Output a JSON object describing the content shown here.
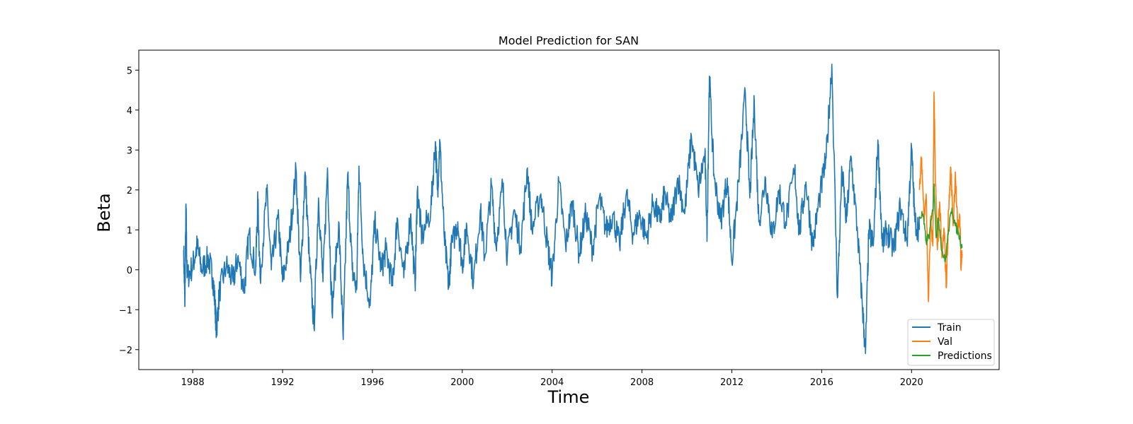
{
  "chart_data": {
    "type": "line",
    "title": "Model Prediction for SAN",
    "xlabel": "Time",
    "ylabel": "Beta",
    "xlim": [
      1985.6,
      2023.9
    ],
    "ylim": [
      -2.5,
      5.5
    ],
    "x_ticks": [
      1988,
      1992,
      1996,
      2000,
      2004,
      2008,
      2012,
      2016,
      2020
    ],
    "y_ticks": [
      -2,
      -1,
      0,
      1,
      2,
      3,
      4,
      5
    ],
    "grid": false,
    "legend_position": "lower-right",
    "series": [
      {
        "name": "Train",
        "color": "#1f77b4",
        "points": [
          [
            1987.6,
            0.5
          ],
          [
            1987.65,
            -0.92
          ],
          [
            1987.7,
            1.65
          ],
          [
            1987.75,
            -0.2
          ],
          [
            1988.0,
            0.1
          ],
          [
            1988.2,
            0.6
          ],
          [
            1988.4,
            0.0
          ],
          [
            1988.7,
            0.3
          ],
          [
            1988.9,
            -0.2
          ],
          [
            1989.0,
            -0.9
          ],
          [
            1989.05,
            -1.55
          ],
          [
            1989.2,
            -0.5
          ],
          [
            1989.5,
            0.1
          ],
          [
            1989.8,
            -0.3
          ],
          [
            1990.0,
            0.3
          ],
          [
            1990.3,
            -0.5
          ],
          [
            1990.5,
            0.9
          ],
          [
            1990.8,
            0.0
          ],
          [
            1990.9,
            1.75
          ],
          [
            1991.0,
            -0.2
          ],
          [
            1991.3,
            1.95
          ],
          [
            1991.5,
            0.0
          ],
          [
            1991.8,
            1.3
          ],
          [
            1992.0,
            -0.3
          ],
          [
            1992.3,
            0.7
          ],
          [
            1992.6,
            2.5
          ],
          [
            1992.8,
            -0.3
          ],
          [
            1993.0,
            2.45
          ],
          [
            1993.2,
            0.2
          ],
          [
            1993.4,
            -1.45
          ],
          [
            1993.6,
            1.8
          ],
          [
            1993.8,
            -0.3
          ],
          [
            1994.0,
            2.55
          ],
          [
            1994.2,
            -1.05
          ],
          [
            1994.5,
            1.2
          ],
          [
            1994.7,
            -1.75
          ],
          [
            1994.9,
            2.4
          ],
          [
            1995.1,
            0.0
          ],
          [
            1995.3,
            -0.5
          ],
          [
            1995.4,
            2.6
          ],
          [
            1995.6,
            0.2
          ],
          [
            1995.9,
            -0.9
          ],
          [
            1996.1,
            1.2
          ],
          [
            1996.4,
            0.0
          ],
          [
            1996.6,
            0.5
          ],
          [
            1996.9,
            -0.4
          ],
          [
            1997.1,
            1.3
          ],
          [
            1997.4,
            -0.2
          ],
          [
            1997.7,
            1.4
          ],
          [
            1997.9,
            -0.4
          ],
          [
            1998.0,
            2.0
          ],
          [
            1998.2,
            0.8
          ],
          [
            1998.6,
            1.5
          ],
          [
            1998.8,
            3.2
          ],
          [
            1998.9,
            2.0
          ],
          [
            1999.0,
            3.2
          ],
          [
            1999.2,
            0.8
          ],
          [
            1999.4,
            -0.45
          ],
          [
            1999.5,
            0.5
          ],
          [
            1999.8,
            1.2
          ],
          [
            2000.0,
            0.1
          ],
          [
            2000.2,
            1.1
          ],
          [
            2000.5,
            -0.3
          ],
          [
            2000.8,
            1.5
          ],
          [
            2001.0,
            0.3
          ],
          [
            2001.3,
            2.1
          ],
          [
            2001.5,
            0.6
          ],
          [
            2001.8,
            2.15
          ],
          [
            2002.0,
            0.3
          ],
          [
            2002.3,
            1.5
          ],
          [
            2002.6,
            0.6
          ],
          [
            2002.9,
            2.55
          ],
          [
            2003.1,
            1.0
          ],
          [
            2003.5,
            1.9
          ],
          [
            2003.8,
            0.6
          ],
          [
            2004.0,
            -0.2
          ],
          [
            2004.3,
            2.2
          ],
          [
            2004.6,
            0.6
          ],
          [
            2004.9,
            1.7
          ],
          [
            2005.2,
            0.4
          ],
          [
            2005.5,
            1.4
          ],
          [
            2005.8,
            0.5
          ],
          [
            2006.1,
            1.8
          ],
          [
            2006.4,
            1.0
          ],
          [
            2006.7,
            1.4
          ],
          [
            2007.0,
            0.6
          ],
          [
            2007.3,
            1.9
          ],
          [
            2007.6,
            0.9
          ],
          [
            2007.9,
            1.4
          ],
          [
            2008.2,
            0.8
          ],
          [
            2008.5,
            1.7
          ],
          [
            2008.8,
            1.2
          ],
          [
            2009.0,
            1.9
          ],
          [
            2009.3,
            1.2
          ],
          [
            2009.6,
            2.3
          ],
          [
            2009.9,
            1.4
          ],
          [
            2010.2,
            3.35
          ],
          [
            2010.5,
            2.0
          ],
          [
            2010.8,
            2.9
          ],
          [
            2010.9,
            0.9
          ],
          [
            2011.0,
            4.85
          ],
          [
            2011.2,
            2.4
          ],
          [
            2011.5,
            1.2
          ],
          [
            2011.8,
            2.3
          ],
          [
            2012.0,
            0.2
          ],
          [
            2012.3,
            2.2
          ],
          [
            2012.6,
            4.45
          ],
          [
            2012.8,
            1.8
          ],
          [
            2013.0,
            4.2
          ],
          [
            2013.2,
            1.2
          ],
          [
            2013.5,
            2.3
          ],
          [
            2013.8,
            0.8
          ],
          [
            2014.1,
            2.0
          ],
          [
            2014.4,
            1.2
          ],
          [
            2014.8,
            2.5
          ],
          [
            2015.0,
            0.9
          ],
          [
            2015.3,
            2.2
          ],
          [
            2015.6,
            0.6
          ],
          [
            2015.9,
            1.8
          ],
          [
            2016.2,
            2.8
          ],
          [
            2016.45,
            5.15
          ],
          [
            2016.7,
            -0.7
          ],
          [
            2016.9,
            2.5
          ],
          [
            2017.1,
            1.2
          ],
          [
            2017.3,
            2.85
          ],
          [
            2017.6,
            0.9
          ],
          [
            2017.8,
            -0.8
          ],
          [
            2017.95,
            -2.1
          ],
          [
            2018.1,
            1.0
          ],
          [
            2018.3,
            0.6
          ],
          [
            2018.5,
            3.25
          ],
          [
            2018.7,
            0.6
          ],
          [
            2018.9,
            1.0
          ],
          [
            2019.2,
            0.5
          ],
          [
            2019.5,
            1.6
          ],
          [
            2019.8,
            0.7
          ],
          [
            2020.0,
            3.05
          ],
          [
            2020.15,
            1.2
          ],
          [
            2020.35,
            1.0
          ]
        ]
      },
      {
        "name": "Val",
        "color": "#ff7f0e",
        "points": [
          [
            2020.35,
            2.0
          ],
          [
            2020.45,
            2.8
          ],
          [
            2020.55,
            1.4
          ],
          [
            2020.65,
            1.9
          ],
          [
            2020.75,
            -0.8
          ],
          [
            2020.85,
            1.3
          ],
          [
            2020.95,
            0.6
          ],
          [
            2021.0,
            4.45
          ],
          [
            2021.05,
            2.6
          ],
          [
            2021.15,
            0.5
          ],
          [
            2021.25,
            1.7
          ],
          [
            2021.35,
            0.3
          ],
          [
            2021.45,
            1.0
          ],
          [
            2021.55,
            -0.45
          ],
          [
            2021.65,
            1.5
          ],
          [
            2021.75,
            2.55
          ],
          [
            2021.85,
            1.1
          ],
          [
            2021.95,
            2.45
          ],
          [
            2022.05,
            1.0
          ],
          [
            2022.15,
            1.3
          ],
          [
            2022.2,
            0.1
          ],
          [
            2022.25,
            0.4
          ]
        ]
      },
      {
        "name": "Predictions",
        "color": "#2ca02c",
        "points": [
          [
            2020.35,
            1.3
          ],
          [
            2020.5,
            1.4
          ],
          [
            2020.65,
            0.7
          ],
          [
            2020.8,
            0.9
          ],
          [
            2020.95,
            1.5
          ],
          [
            2021.0,
            2.15
          ],
          [
            2021.1,
            0.8
          ],
          [
            2021.2,
            1.3
          ],
          [
            2021.35,
            0.5
          ],
          [
            2021.5,
            0.2
          ],
          [
            2021.65,
            1.0
          ],
          [
            2021.8,
            1.55
          ],
          [
            2021.95,
            1.1
          ],
          [
            2022.1,
            0.9
          ],
          [
            2022.25,
            0.55
          ]
        ]
      }
    ]
  }
}
